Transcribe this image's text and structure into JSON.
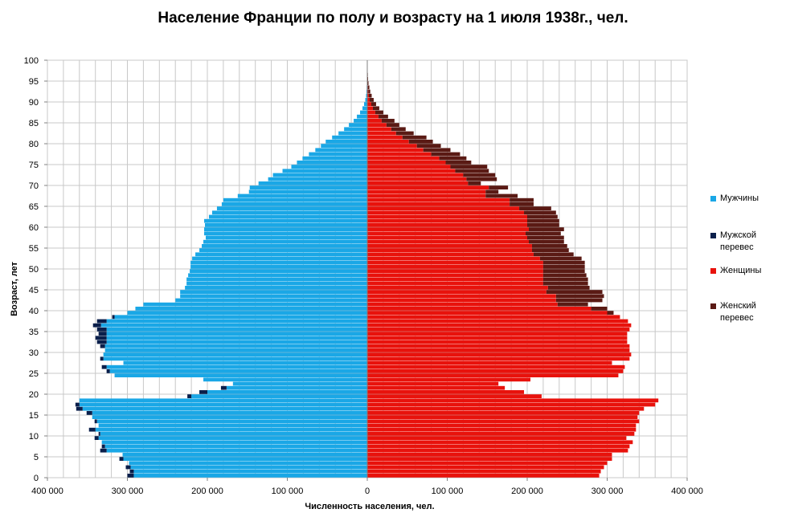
{
  "chart_data": {
    "type": "bar",
    "orientation": "horizontal",
    "title": "Население Франции по полу и возрасту на 1 июля 1938г., чел.",
    "xlabel": "Численность  населения, чел.",
    "ylabel": "Возраст, лет",
    "xlim": [
      -400000,
      400000
    ],
    "ylim": [
      0,
      100
    ],
    "x_ticks": [
      -400000,
      -300000,
      -200000,
      -100000,
      0,
      100000,
      200000,
      300000,
      400000
    ],
    "x_tick_labels": [
      "400 000",
      "300 000",
      "200 000",
      "100 000",
      "0",
      "100 000",
      "200 000",
      "300 000",
      "400 000"
    ],
    "y_ticks": [
      0,
      5,
      10,
      15,
      20,
      25,
      30,
      35,
      40,
      45,
      50,
      55,
      60,
      65,
      70,
      75,
      80,
      85,
      90,
      95,
      100
    ],
    "y_tick_labels": [
      "0",
      "5",
      "10",
      "15",
      "20",
      "25",
      "30",
      "35",
      "40",
      "45",
      "50",
      "55",
      "60",
      "65",
      "70",
      "75",
      "80",
      "85",
      "90",
      "95",
      "100"
    ],
    "grid": true,
    "legend_position": "right",
    "ages": [
      0,
      1,
      2,
      3,
      4,
      5,
      6,
      7,
      8,
      9,
      10,
      11,
      12,
      13,
      14,
      15,
      16,
      17,
      18,
      19,
      20,
      21,
      22,
      23,
      24,
      25,
      26,
      27,
      28,
      29,
      30,
      31,
      32,
      33,
      34,
      35,
      36,
      37,
      38,
      39,
      40,
      41,
      42,
      43,
      44,
      45,
      46,
      47,
      48,
      49,
      50,
      51,
      52,
      53,
      54,
      55,
      56,
      57,
      58,
      59,
      60,
      61,
      62,
      63,
      64,
      65,
      66,
      67,
      68,
      69,
      70,
      71,
      72,
      73,
      74,
      75,
      76,
      77,
      78,
      79,
      80,
      81,
      82,
      83,
      84,
      85,
      86,
      87,
      88,
      89,
      90,
      91,
      92,
      93,
      94,
      95,
      96,
      97,
      98,
      99
    ],
    "series": [
      {
        "name": "Мужчины",
        "color": "#1aa7e6",
        "values": [
          292000,
          292000,
          296000,
          298000,
          305000,
          306000,
          326000,
          328000,
          332000,
          336000,
          334000,
          340000,
          336000,
          338000,
          344000,
          344000,
          356000,
          360000,
          360000,
          220000,
          200000,
          176000,
          168000,
          205000,
          316000,
          322000,
          326000,
          305000,
          330000,
          330000,
          328000,
          328000,
          326000,
          326000,
          326000,
          326000,
          333000,
          326000,
          316000,
          300000,
          290000,
          280000,
          240000,
          234000,
          234000,
          228000,
          226000,
          226000,
          224000,
          222000,
          221000,
          221000,
          219000,
          215000,
          210000,
          207000,
          205000,
          202000,
          204000,
          204000,
          203000,
          204000,
          198000,
          194000,
          188000,
          182000,
          180000,
          162000,
          148000,
          147000,
          136000,
          124000,
          118000,
          106000,
          95000,
          88000,
          81000,
          73000,
          65000,
          58000,
          52000,
          44000,
          36000,
          29000,
          23000,
          17000,
          13000,
          9000,
          6000,
          4000,
          2500,
          1500,
          1000,
          700,
          400,
          250,
          150,
          100,
          50,
          30
        ]
      },
      {
        "name": "Мужской перевес",
        "color": "#0a1f4b",
        "values": [
          8000,
          5000,
          6000,
          0,
          5000,
          0,
          8000,
          4000,
          0,
          5000,
          2000,
          8000,
          0,
          3000,
          0,
          7000,
          8000,
          5000,
          0,
          5000,
          10000,
          7000,
          0,
          0,
          0,
          4000,
          6000,
          0,
          4000,
          0,
          0,
          6000,
          12000,
          14000,
          10000,
          12000,
          10000,
          12000,
          3000,
          0,
          0,
          0,
          0,
          0,
          0,
          0,
          0,
          0,
          0,
          0,
          0,
          0,
          0,
          0,
          0,
          0,
          0,
          0,
          0,
          0,
          0,
          0,
          0,
          0,
          0,
          0,
          0,
          0,
          0,
          0,
          0,
          0,
          0,
          0,
          0,
          0,
          0,
          0,
          0,
          0,
          0,
          0,
          0,
          0,
          0,
          0,
          0,
          0,
          0,
          0,
          0,
          0,
          0,
          0,
          0,
          0,
          0,
          0,
          0,
          0
        ]
      },
      {
        "name": "Женщины",
        "color": "#e8120c",
        "values": [
          290000,
          292000,
          296000,
          300000,
          306000,
          306000,
          326000,
          328000,
          332000,
          324000,
          334000,
          336000,
          336000,
          340000,
          338000,
          340000,
          346000,
          360000,
          364000,
          218000,
          196000,
          172000,
          164000,
          204000,
          314000,
          320000,
          322000,
          306000,
          328000,
          330000,
          328000,
          328000,
          325000,
          325000,
          325000,
          328000,
          330000,
          326000,
          316000,
          300000,
          280000,
          238000,
          236000,
          236000,
          224000,
          226000,
          220000,
          220000,
          220000,
          220000,
          220000,
          220000,
          216000,
          208000,
          206000,
          206000,
          202000,
          200000,
          198000,
          202000,
          200000,
          200000,
          200000,
          196000,
          190000,
          178000,
          178000,
          148000,
          148000,
          152000,
          126000,
          124000,
          120000,
          110000,
          104000,
          98000,
          90000,
          80000,
          70000,
          62000,
          52000,
          44000,
          36000,
          30000,
          24000,
          18000,
          14000,
          10000,
          7000,
          5000,
          3000,
          2000,
          1200,
          800,
          500,
          300,
          200,
          120,
          60,
          30
        ]
      },
      {
        "name": "Женский перевес",
        "color": "#5a1a14",
        "values": [
          0,
          0,
          0,
          0,
          0,
          0,
          0,
          0,
          0,
          0,
          0,
          0,
          0,
          0,
          0,
          0,
          0,
          0,
          0,
          0,
          0,
          0,
          0,
          0,
          0,
          0,
          0,
          0,
          0,
          0,
          0,
          0,
          0,
          0,
          0,
          0,
          0,
          0,
          0,
          8000,
          20000,
          38000,
          58000,
          60000,
          70000,
          52000,
          56000,
          56000,
          54000,
          52000,
          52000,
          52000,
          52000,
          50000,
          46000,
          44000,
          44000,
          46000,
          44000,
          44000,
          40000,
          40000,
          38000,
          40000,
          40000,
          30000,
          30000,
          40000,
          16000,
          24000,
          16000,
          38000,
          40000,
          42000,
          46000,
          32000,
          34000,
          36000,
          34000,
          30000,
          30000,
          30000,
          22000,
          18000,
          16000,
          16000,
          12000,
          10000,
          8000,
          6000,
          5000,
          3500,
          2500,
          1800,
          1000,
          700,
          500,
          300,
          150,
          80
        ]
      }
    ]
  },
  "legend": {
    "items": [
      {
        "label": "Мужчины",
        "color": "#1aa7e6"
      },
      {
        "label": "Мужской перевес",
        "color": "#0a1f4b"
      },
      {
        "label": "Женщины",
        "color": "#e8120c"
      },
      {
        "label": "Женский перевес",
        "color": "#5a1a14"
      }
    ]
  }
}
